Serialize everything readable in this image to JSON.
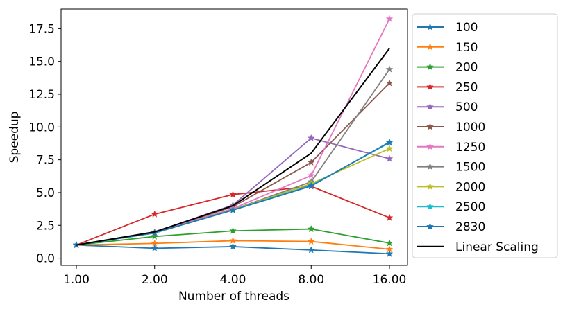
{
  "chart_data": {
    "type": "line",
    "title": "",
    "xlabel": "Number of threads",
    "ylabel": "Speedup",
    "x": [
      1,
      2,
      4,
      8,
      16
    ],
    "x_scale": "log2",
    "xticks": [
      "1.00",
      "2.00",
      "4.00",
      "8.00",
      "16.00"
    ],
    "yticks": [
      "0.0",
      "2.5",
      "5.0",
      "7.5",
      "10.0",
      "12.5",
      "15.0",
      "17.5"
    ],
    "ytick_values": [
      0,
      2.5,
      5,
      7.5,
      10,
      12.5,
      15,
      17.5
    ],
    "ylim": [
      -0.55,
      19.0
    ],
    "grid": false,
    "legend_position": "outside-right",
    "series": [
      {
        "name": "100",
        "color": "#1f77b4",
        "marker": "star",
        "values": [
          1.0,
          0.75,
          0.88,
          0.62,
          0.33
        ]
      },
      {
        "name": "150",
        "color": "#ff7f0e",
        "marker": "star",
        "values": [
          1.0,
          1.12,
          1.33,
          1.27,
          0.68
        ]
      },
      {
        "name": "200",
        "color": "#2ca02c",
        "marker": "star",
        "values": [
          1.0,
          1.65,
          2.08,
          2.22,
          1.15
        ]
      },
      {
        "name": "250",
        "color": "#d62728",
        "marker": "star",
        "values": [
          1.0,
          3.35,
          4.85,
          5.48,
          3.08
        ]
      },
      {
        "name": "500",
        "color": "#9467bd",
        "marker": "star",
        "values": [
          1.0,
          1.98,
          4.05,
          9.15,
          7.58
        ]
      },
      {
        "name": "1000",
        "color": "#8c564b",
        "marker": "star",
        "values": [
          1.0,
          1.98,
          3.92,
          7.3,
          13.35
        ]
      },
      {
        "name": "1250",
        "color": "#e377c2",
        "marker": "star",
        "values": [
          1.0,
          1.95,
          3.78,
          6.3,
          18.25
        ]
      },
      {
        "name": "1500",
        "color": "#7f7f7f",
        "marker": "star",
        "values": [
          1.0,
          1.93,
          3.7,
          5.82,
          14.4
        ]
      },
      {
        "name": "2000",
        "color": "#bcbd22",
        "marker": "star",
        "values": [
          1.0,
          1.92,
          3.68,
          5.68,
          8.35
        ]
      },
      {
        "name": "2500",
        "color": "#17becf",
        "marker": "star",
        "values": [
          1.0,
          1.92,
          3.67,
          5.55,
          8.8
        ]
      },
      {
        "name": "2830",
        "color": "#1f77b4",
        "marker": "star",
        "values": [
          1.0,
          1.92,
          3.66,
          5.5,
          8.85
        ]
      },
      {
        "name": "Linear Scaling",
        "color": "#000000",
        "marker": "none",
        "values": [
          1,
          2,
          4,
          8,
          16
        ]
      }
    ]
  }
}
